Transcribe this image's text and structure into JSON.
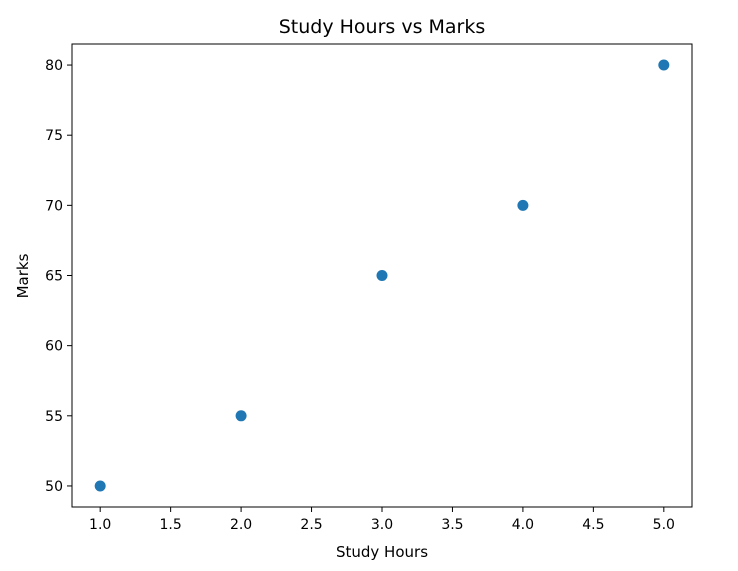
{
  "chart_data": {
    "type": "scatter",
    "title": "Study Hours vs Marks",
    "xlabel": "Study Hours",
    "ylabel": "Marks",
    "x": [
      1.0,
      2.0,
      3.0,
      4.0,
      5.0
    ],
    "y": [
      50,
      55,
      65,
      70,
      80
    ],
    "xlim": [
      0.8,
      5.2
    ],
    "ylim": [
      48.5,
      81.5
    ],
    "xticks": [
      "1.0",
      "1.5",
      "2.0",
      "2.5",
      "3.0",
      "3.5",
      "4.0",
      "4.5",
      "5.0"
    ],
    "yticks": [
      "50",
      "55",
      "60",
      "65",
      "70",
      "75",
      "80"
    ],
    "grid": false,
    "marker_color": "#1f77b4"
  }
}
